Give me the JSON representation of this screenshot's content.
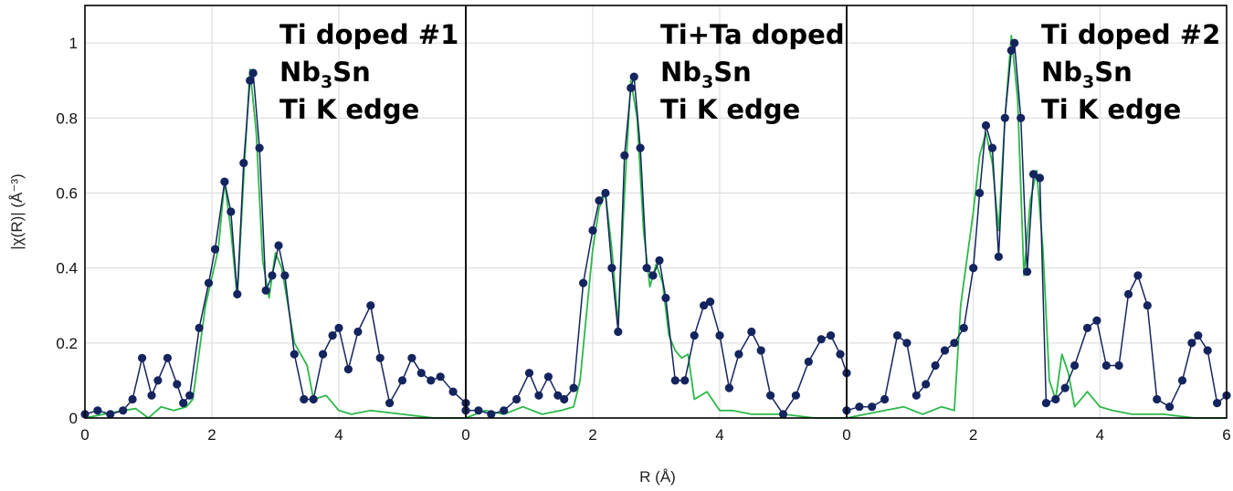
{
  "chart_data": {
    "type": "line",
    "xlabel": "R (Å)",
    "ylabel": "|χ(R)| (Å⁻³)",
    "ylim": [
      0,
      1.1
    ],
    "yticks": [
      "0",
      "0.2",
      "0.4",
      "0.6",
      "0.8",
      "1"
    ],
    "grid": true,
    "colors": {
      "data": "#14245e",
      "fit": "#2db84a",
      "grid": "#d9d9d9"
    },
    "panels": [
      {
        "title_lines": [
          {
            "main": "Ti doped #1"
          },
          {
            "pre": "Nb",
            "sub": "3",
            "post": "Sn"
          },
          {
            "main": "Ti K edge"
          }
        ],
        "xlim": [
          0,
          6
        ],
        "xticks": [
          "0",
          "2",
          "4",
          ""
        ],
        "data": {
          "x": [
            0,
            0.2,
            0.4,
            0.6,
            0.75,
            0.9,
            1.05,
            1.15,
            1.3,
            1.45,
            1.55,
            1.65,
            1.8,
            1.95,
            2.05,
            2.2,
            2.3,
            2.4,
            2.5,
            2.6,
            2.65,
            2.75,
            2.85,
            2.95,
            3.05,
            3.15,
            3.3,
            3.45,
            3.6,
            3.75,
            3.9,
            4.0,
            4.15,
            4.3,
            4.5,
            4.65,
            4.8,
            5.0,
            5.15,
            5.3,
            5.45,
            5.6,
            5.8,
            6.0
          ],
          "y": [
            0.01,
            0.02,
            0.01,
            0.02,
            0.05,
            0.16,
            0.06,
            0.1,
            0.16,
            0.09,
            0.04,
            0.06,
            0.24,
            0.36,
            0.45,
            0.63,
            0.55,
            0.33,
            0.68,
            0.9,
            0.92,
            0.72,
            0.34,
            0.38,
            0.46,
            0.38,
            0.17,
            0.05,
            0.05,
            0.17,
            0.22,
            0.24,
            0.13,
            0.23,
            0.3,
            0.16,
            0.04,
            0.1,
            0.16,
            0.12,
            0.1,
            0.11,
            0.07,
            0.04
          ]
        },
        "fit": {
          "x": [
            0,
            0.3,
            0.6,
            0.8,
            1.0,
            1.2,
            1.4,
            1.6,
            1.7,
            1.9,
            2.1,
            2.2,
            2.3,
            2.4,
            2.5,
            2.6,
            2.7,
            2.8,
            2.9,
            3.0,
            3.1,
            3.2,
            3.3,
            3.4,
            3.5,
            3.6,
            3.8,
            4.0,
            4.2,
            4.5,
            5.0,
            5.5,
            6.0
          ],
          "y": [
            0.0,
            0.01,
            0.02,
            0.025,
            0.0,
            0.03,
            0.02,
            0.03,
            0.05,
            0.3,
            0.45,
            0.63,
            0.5,
            0.32,
            0.64,
            0.93,
            0.76,
            0.42,
            0.32,
            0.44,
            0.4,
            0.3,
            0.2,
            0.17,
            0.14,
            0.05,
            0.06,
            0.02,
            0.01,
            0.02,
            0.01,
            0.0,
            0.0
          ]
        }
      },
      {
        "title_lines": [
          {
            "main": "Ti+Ta doped"
          },
          {
            "pre": "Nb",
            "sub": "3",
            "post": "Sn"
          },
          {
            "main": "Ti K edge"
          }
        ],
        "xlim": [
          0,
          6
        ],
        "xticks": [
          "0",
          "2",
          "4",
          ""
        ],
        "data": {
          "x": [
            0,
            0.2,
            0.4,
            0.6,
            0.8,
            1.0,
            1.15,
            1.3,
            1.45,
            1.55,
            1.7,
            1.85,
            2.0,
            2.1,
            2.2,
            2.3,
            2.4,
            2.5,
            2.6,
            2.65,
            2.75,
            2.85,
            2.95,
            3.05,
            3.15,
            3.3,
            3.45,
            3.6,
            3.75,
            3.85,
            4.0,
            4.15,
            4.3,
            4.5,
            4.65,
            4.8,
            5.0,
            5.2,
            5.4,
            5.6,
            5.75,
            5.9,
            6.0
          ],
          "y": [
            0.02,
            0.02,
            0.01,
            0.02,
            0.05,
            0.12,
            0.06,
            0.11,
            0.06,
            0.05,
            0.08,
            0.36,
            0.5,
            0.58,
            0.6,
            0.4,
            0.23,
            0.7,
            0.88,
            0.91,
            0.72,
            0.4,
            0.38,
            0.42,
            0.32,
            0.1,
            0.1,
            0.22,
            0.3,
            0.31,
            0.22,
            0.08,
            0.17,
            0.23,
            0.18,
            0.06,
            0.01,
            0.06,
            0.15,
            0.21,
            0.22,
            0.17,
            0.12
          ]
        },
        "fit": {
          "x": [
            0,
            0.3,
            0.6,
            0.9,
            1.2,
            1.5,
            1.7,
            1.8,
            2.0,
            2.1,
            2.2,
            2.3,
            2.4,
            2.5,
            2.6,
            2.7,
            2.8,
            2.9,
            3.0,
            3.1,
            3.2,
            3.3,
            3.4,
            3.5,
            3.6,
            3.7,
            3.8,
            4.0,
            4.2,
            4.5,
            5.0,
            5.5,
            6.0
          ],
          "y": [
            0.0,
            0.02,
            0.01,
            0.03,
            0.01,
            0.02,
            0.03,
            0.1,
            0.45,
            0.56,
            0.6,
            0.45,
            0.25,
            0.6,
            0.9,
            0.8,
            0.5,
            0.35,
            0.41,
            0.36,
            0.22,
            0.18,
            0.16,
            0.17,
            0.05,
            0.06,
            0.07,
            0.02,
            0.02,
            0.01,
            0.01,
            0.0,
            0.0
          ]
        }
      },
      {
        "title_lines": [
          {
            "main": "Ti doped #2"
          },
          {
            "pre": "Nb",
            "sub": "3",
            "post": "Sn"
          },
          {
            "main": "Ti K edge"
          }
        ],
        "xlim": [
          0,
          6
        ],
        "xticks": [
          "0",
          "2",
          "4",
          "6"
        ],
        "data": {
          "x": [
            0,
            0.2,
            0.4,
            0.6,
            0.8,
            0.95,
            1.1,
            1.25,
            1.4,
            1.55,
            1.7,
            1.85,
            2.0,
            2.1,
            2.2,
            2.3,
            2.4,
            2.5,
            2.6,
            2.65,
            2.75,
            2.85,
            2.95,
            3.05,
            3.15,
            3.3,
            3.45,
            3.6,
            3.8,
            3.95,
            4.1,
            4.3,
            4.45,
            4.6,
            4.75,
            4.9,
            5.1,
            5.3,
            5.45,
            5.55,
            5.7,
            5.85,
            6.0
          ],
          "y": [
            0.02,
            0.03,
            0.03,
            0.05,
            0.22,
            0.2,
            0.06,
            0.09,
            0.14,
            0.18,
            0.2,
            0.24,
            0.4,
            0.6,
            0.78,
            0.72,
            0.43,
            0.8,
            0.98,
            1.0,
            0.8,
            0.39,
            0.65,
            0.64,
            0.04,
            0.05,
            0.08,
            0.14,
            0.24,
            0.26,
            0.14,
            0.14,
            0.33,
            0.38,
            0.3,
            0.05,
            0.03,
            0.1,
            0.2,
            0.22,
            0.18,
            0.04,
            0.06
          ]
        },
        "fit": {
          "x": [
            0,
            0.3,
            0.6,
            0.9,
            1.2,
            1.5,
            1.7,
            1.8,
            2.0,
            2.1,
            2.2,
            2.3,
            2.4,
            2.5,
            2.6,
            2.7,
            2.8,
            2.9,
            3.0,
            3.1,
            3.2,
            3.3,
            3.4,
            3.5,
            3.6,
            3.8,
            4.0,
            4.2,
            4.5,
            5.0,
            5.5,
            6.0
          ],
          "y": [
            0.0,
            0.01,
            0.02,
            0.03,
            0.01,
            0.03,
            0.02,
            0.3,
            0.55,
            0.7,
            0.76,
            0.68,
            0.5,
            0.8,
            1.02,
            0.85,
            0.38,
            0.58,
            0.66,
            0.45,
            0.1,
            0.05,
            0.17,
            0.12,
            0.03,
            0.07,
            0.03,
            0.02,
            0.01,
            0.01,
            0.0,
            0.0
          ]
        }
      }
    ]
  }
}
